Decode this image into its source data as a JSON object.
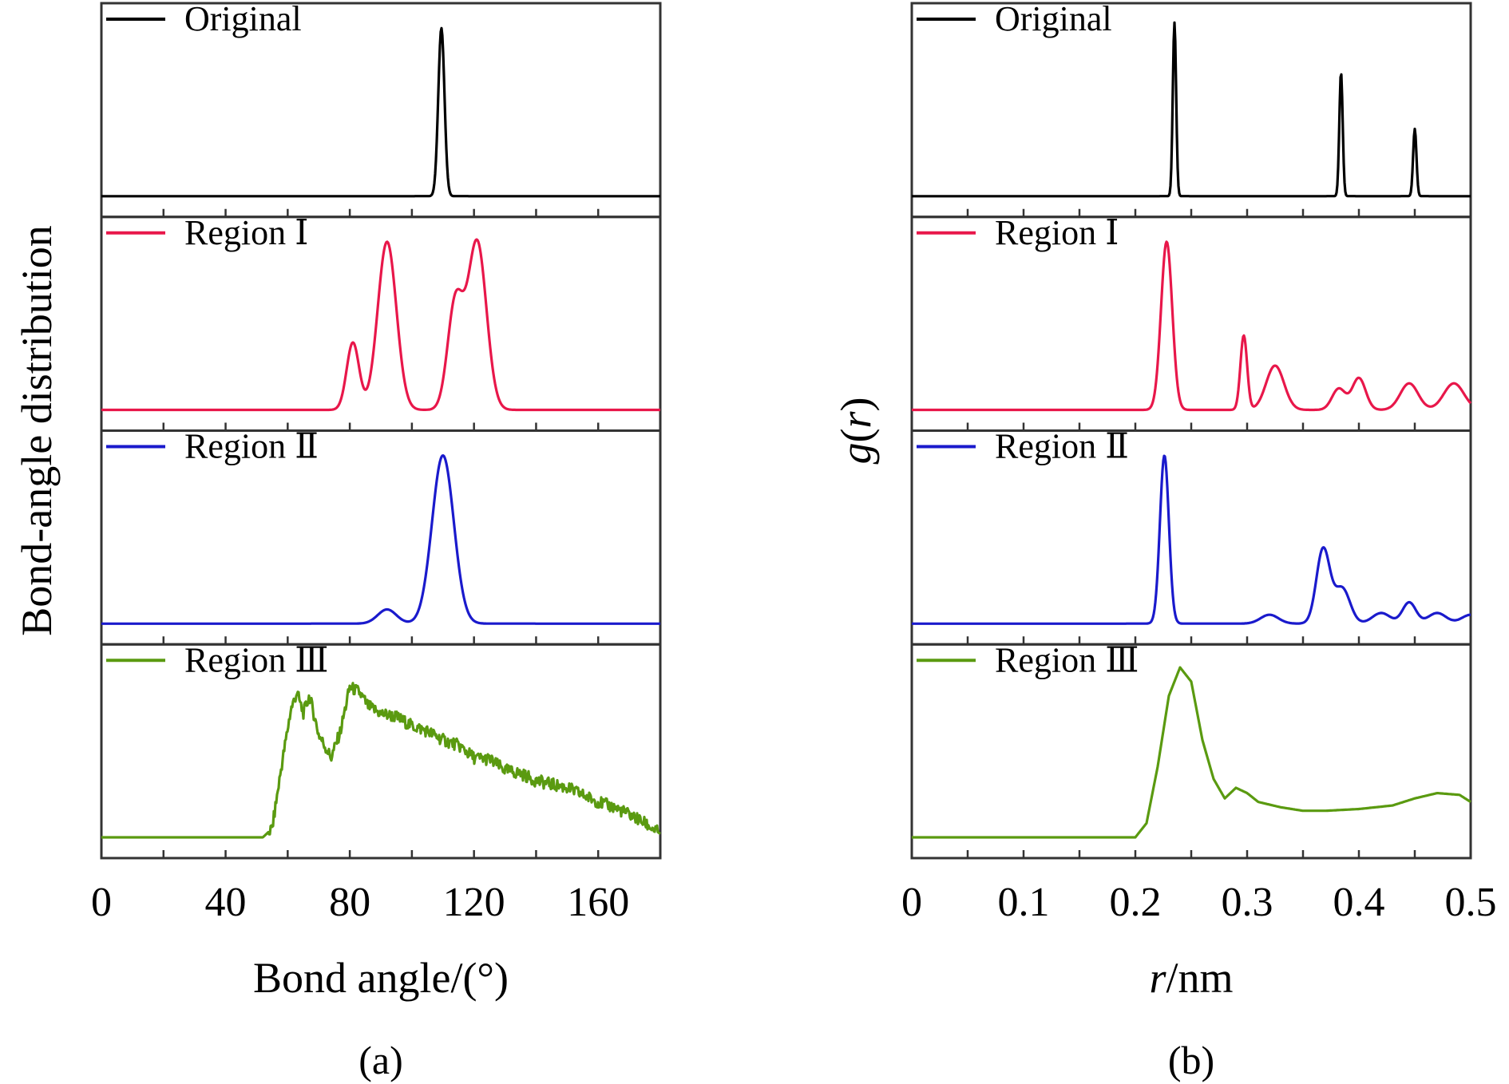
{
  "chart_data": [
    {
      "type": "line",
      "panel_label": "(a)",
      "xlabel": "Bond angle/(°)",
      "ylabel": "Bond-angle distribution",
      "xlim": [
        0,
        180
      ],
      "xticks": [
        0,
        40,
        80,
        120,
        160
      ],
      "minor_xticks": [
        20,
        60,
        100,
        140
      ],
      "ylim_per_subplot": [
        0,
        1
      ],
      "y_tick_labels": "none",
      "grid": false,
      "legend": "top-left",
      "colors": {
        "Original": "#000000",
        "Region Ⅰ": "#e8174a",
        "Region Ⅱ": "#1a1acc",
        "Region Ⅲ": "#5a9a10"
      },
      "series": [
        {
          "name": "Original",
          "peaks": [
            [
              109.5,
              0.95,
              1.0
            ]
          ],
          "baseline": 0.0
        },
        {
          "name": "Region Ⅰ",
          "peaks": [
            [
              81,
              0.38,
              2.0
            ],
            [
              92,
              0.95,
              3.0
            ],
            [
              114,
              0.6,
              2.5
            ],
            [
              121,
              0.95,
              3.0
            ]
          ],
          "baseline": 0.0
        },
        {
          "name": "Region Ⅱ",
          "peaks": [
            [
              92,
              0.08,
              3.0
            ],
            [
              110,
              0.95,
              3.5
            ]
          ],
          "baseline": 0.0
        },
        {
          "name": "Region Ⅲ",
          "profile": [
            [
              0,
              0.0
            ],
            [
              52,
              0.0
            ],
            [
              55,
              0.05
            ],
            [
              58,
              0.4
            ],
            [
              61,
              0.72
            ],
            [
              63,
              0.82
            ],
            [
              65,
              0.7
            ],
            [
              67,
              0.8
            ],
            [
              70,
              0.58
            ],
            [
              74,
              0.45
            ],
            [
              77,
              0.6
            ],
            [
              80,
              0.85
            ],
            [
              83,
              0.82
            ],
            [
              86,
              0.74
            ],
            [
              90,
              0.7
            ],
            [
              95,
              0.68
            ],
            [
              100,
              0.63
            ],
            [
              105,
              0.6
            ],
            [
              110,
              0.55
            ],
            [
              115,
              0.52
            ],
            [
              120,
              0.45
            ],
            [
              125,
              0.44
            ],
            [
              130,
              0.38
            ],
            [
              135,
              0.36
            ],
            [
              140,
              0.32
            ],
            [
              145,
              0.3
            ],
            [
              150,
              0.28
            ],
            [
              155,
              0.24
            ],
            [
              160,
              0.2
            ],
            [
              165,
              0.17
            ],
            [
              170,
              0.13
            ],
            [
              175,
              0.08
            ],
            [
              180,
              0.02
            ]
          ]
        }
      ]
    },
    {
      "type": "line",
      "panel_label": "(b)",
      "xlabel": "r/nm",
      "ylabel": "g(r)",
      "xlim": [
        0,
        0.5
      ],
      "xticks": [
        0,
        0.1,
        0.2,
        0.3,
        0.4,
        0.5
      ],
      "minor_xticks": [
        0.05,
        0.15,
        0.25,
        0.35,
        0.45
      ],
      "ylim_per_subplot": [
        0,
        1
      ],
      "y_tick_labels": "none",
      "grid": false,
      "legend": "top-left",
      "colors": {
        "Original": "#000000",
        "Region Ⅰ": "#e8174a",
        "Region Ⅱ": "#1a1acc",
        "Region Ⅲ": "#5a9a10"
      },
      "series": [
        {
          "name": "Original",
          "peaks": [
            [
              0.235,
              0.98,
              0.0015
            ],
            [
              0.384,
              0.7,
              0.0015
            ],
            [
              0.45,
              0.38,
              0.0015
            ]
          ],
          "baseline": 0.0
        },
        {
          "name": "Region Ⅰ",
          "peaks": [
            [
              0.228,
              0.95,
              0.005
            ],
            [
              0.297,
              0.42,
              0.003
            ],
            [
              0.325,
              0.25,
              0.008
            ],
            [
              0.382,
              0.12,
              0.006
            ],
            [
              0.4,
              0.18,
              0.006
            ],
            [
              0.445,
              0.15,
              0.008
            ],
            [
              0.485,
              0.15,
              0.009
            ]
          ],
          "baseline": 0.0
        },
        {
          "name": "Region Ⅱ",
          "peaks": [
            [
              0.226,
              0.95,
              0.004
            ],
            [
              0.32,
              0.05,
              0.008
            ],
            [
              0.368,
              0.42,
              0.006
            ],
            [
              0.385,
              0.2,
              0.007
            ],
            [
              0.42,
              0.06,
              0.008
            ],
            [
              0.445,
              0.12,
              0.006
            ],
            [
              0.47,
              0.06,
              0.008
            ],
            [
              0.5,
              0.05,
              0.008
            ]
          ],
          "baseline": 0.0
        },
        {
          "name": "Region Ⅲ",
          "profile": [
            [
              0,
              0.0
            ],
            [
              0.2,
              0.0
            ],
            [
              0.21,
              0.08
            ],
            [
              0.22,
              0.4
            ],
            [
              0.23,
              0.8
            ],
            [
              0.24,
              0.96
            ],
            [
              0.25,
              0.88
            ],
            [
              0.26,
              0.55
            ],
            [
              0.27,
              0.33
            ],
            [
              0.28,
              0.22
            ],
            [
              0.29,
              0.28
            ],
            [
              0.3,
              0.25
            ],
            [
              0.31,
              0.2
            ],
            [
              0.33,
              0.17
            ],
            [
              0.35,
              0.15
            ],
            [
              0.37,
              0.15
            ],
            [
              0.4,
              0.16
            ],
            [
              0.43,
              0.18
            ],
            [
              0.45,
              0.22
            ],
            [
              0.47,
              0.25
            ],
            [
              0.49,
              0.24
            ],
            [
              0.5,
              0.2
            ]
          ]
        }
      ]
    }
  ]
}
